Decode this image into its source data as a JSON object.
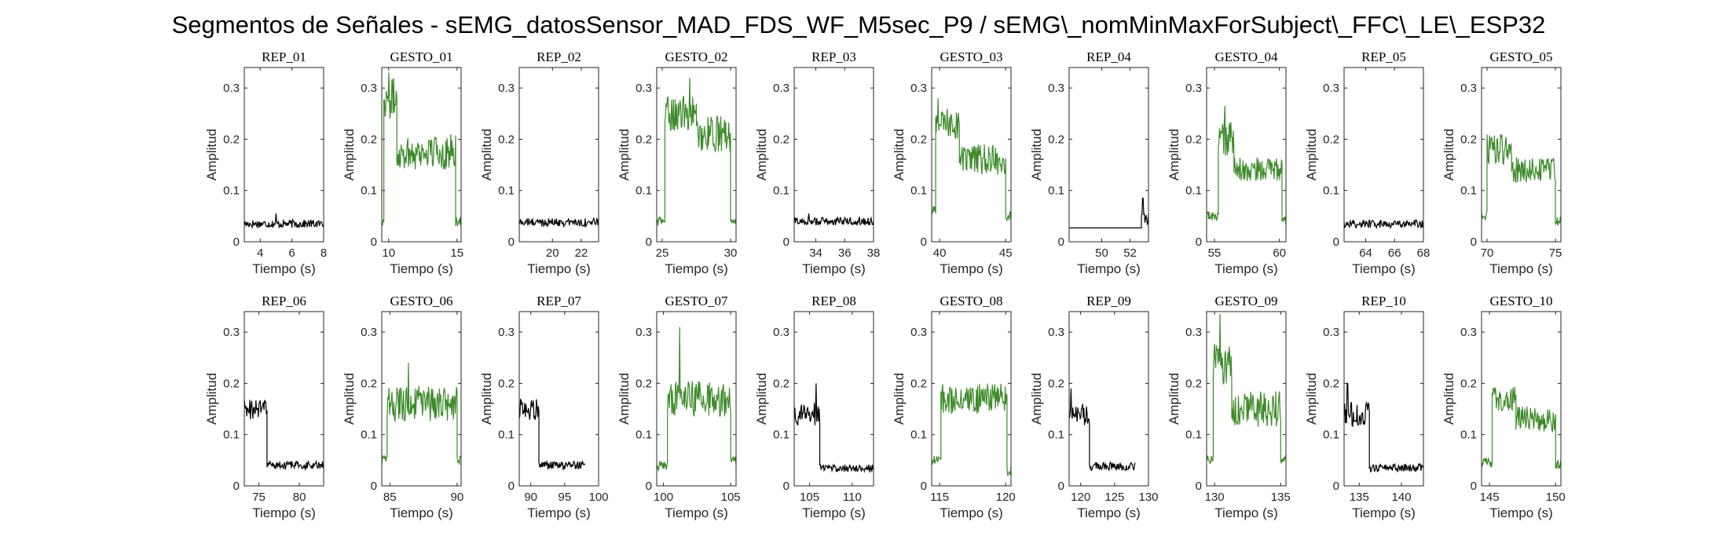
{
  "title": "Segmentos de Señales - sEMG_datosSensor_MAD_FDS_WF_M5sec_P9 / sEMG\\_nomMinMaxForSubject\\_FFC\\_LE\\_ESP32",
  "colors": {
    "rep": "#000000",
    "gesto": "#3d8a2a"
  },
  "chart_data": [
    {
      "type": "line",
      "title": "REP_01",
      "xlabel": "Tiempo (s)",
      "ylabel": "Amplitud",
      "xlim": [
        3,
        8
      ],
      "ylim": [
        0,
        0.34
      ],
      "xticks": [
        4,
        6,
        8
      ],
      "yticks": [
        0,
        0.1,
        0.2,
        0.3
      ],
      "color": "#000000",
      "segments": [
        {
          "x0": 3,
          "x1": 8,
          "level": 0.035,
          "noise": 0.008,
          "spikes": [
            {
              "x": 5.0,
              "y": 0.055
            }
          ]
        }
      ]
    },
    {
      "type": "line",
      "title": "GESTO_01",
      "xlabel": "Tiempo (s)",
      "ylabel": "Amplitud",
      "xlim": [
        9.5,
        15.3
      ],
      "ylim": [
        0,
        0.34
      ],
      "xticks": [
        10,
        15
      ],
      "yticks": [
        0,
        0.1,
        0.2,
        0.3
      ],
      "color": "#3d8a2a",
      "segments": [
        {
          "x0": 9.5,
          "x1": 9.65,
          "level": 0.04,
          "noise": 0.01
        },
        {
          "x0": 9.65,
          "x1": 10.6,
          "level": 0.28,
          "noise": 0.04,
          "spikes": [
            {
              "x": 10.0,
              "y": 0.33
            }
          ]
        },
        {
          "x0": 10.6,
          "x1": 14.9,
          "level": 0.175,
          "noise": 0.035
        },
        {
          "x0": 14.9,
          "x1": 15.3,
          "level": 0.04,
          "noise": 0.01
        }
      ]
    },
    {
      "type": "line",
      "title": "REP_02",
      "xlabel": "Tiempo (s)",
      "ylabel": "Amplitud",
      "xlim": [
        17.7,
        23.2
      ],
      "ylim": [
        0,
        0.34
      ],
      "xticks": [
        20,
        22
      ],
      "yticks": [
        0,
        0.1,
        0.2,
        0.3
      ],
      "color": "#000000",
      "segments": [
        {
          "x0": 17.7,
          "x1": 23.2,
          "level": 0.038,
          "noise": 0.008
        }
      ]
    },
    {
      "type": "line",
      "title": "GESTO_02",
      "xlabel": "Tiempo (s)",
      "ylabel": "Amplitud",
      "xlim": [
        24.6,
        30.4
      ],
      "ylim": [
        0,
        0.34
      ],
      "xticks": [
        25,
        30
      ],
      "yticks": [
        0,
        0.1,
        0.2,
        0.3
      ],
      "color": "#3d8a2a",
      "segments": [
        {
          "x0": 24.6,
          "x1": 25.2,
          "level": 0.04,
          "noise": 0.01
        },
        {
          "x0": 25.2,
          "x1": 27.5,
          "level": 0.25,
          "noise": 0.035,
          "spikes": [
            {
              "x": 27.0,
              "y": 0.32
            }
          ]
        },
        {
          "x0": 27.5,
          "x1": 30.0,
          "level": 0.21,
          "noise": 0.035
        },
        {
          "x0": 30.0,
          "x1": 30.4,
          "level": 0.035,
          "noise": 0.01
        }
      ]
    },
    {
      "type": "line",
      "title": "REP_03",
      "xlabel": "Tiempo (s)",
      "ylabel": "Amplitud",
      "xlim": [
        32.5,
        38
      ],
      "ylim": [
        0,
        0.34
      ],
      "xticks": [
        34,
        36,
        38
      ],
      "yticks": [
        0,
        0.1,
        0.2,
        0.3
      ],
      "color": "#000000",
      "segments": [
        {
          "x0": 32.5,
          "x1": 38,
          "level": 0.04,
          "noise": 0.008,
          "spikes": [
            {
              "x": 33.5,
              "y": 0.055
            }
          ]
        }
      ]
    },
    {
      "type": "line",
      "title": "GESTO_03",
      "xlabel": "Tiempo (s)",
      "ylabel": "Amplitud",
      "xlim": [
        39.4,
        45.4
      ],
      "ylim": [
        0,
        0.34
      ],
      "xticks": [
        40,
        45
      ],
      "yticks": [
        0,
        0.1,
        0.2,
        0.3
      ],
      "color": "#3d8a2a",
      "segments": [
        {
          "x0": 39.4,
          "x1": 39.7,
          "level": 0.06,
          "noise": 0.01
        },
        {
          "x0": 39.7,
          "x1": 41.5,
          "level": 0.23,
          "noise": 0.03,
          "spikes": [
            {
              "x": 39.9,
              "y": 0.28
            }
          ]
        },
        {
          "x0": 41.5,
          "x1": 45.0,
          "level": 0.16,
          "noise": 0.03
        },
        {
          "x0": 45.0,
          "x1": 45.4,
          "level": 0.05,
          "noise": 0.01
        }
      ]
    },
    {
      "type": "line",
      "title": "REP_04",
      "xlabel": "Tiempo (s)",
      "ylabel": "Amplitud",
      "xlim": [
        47.7,
        53.3
      ],
      "ylim": [
        0,
        0.34
      ],
      "xticks": [
        50,
        52
      ],
      "yticks": [
        0,
        0.1,
        0.2,
        0.3
      ],
      "color": "#000000",
      "segments": [
        {
          "x0": 47.7,
          "x1": 52.8,
          "level": 0.027,
          "noise": 0
        },
        {
          "x0": 52.8,
          "x1": 53.3,
          "level": 0.045,
          "noise": 0.012,
          "spikes": [
            {
              "x": 52.9,
              "y": 0.085
            }
          ]
        }
      ]
    },
    {
      "type": "line",
      "title": "GESTO_04",
      "xlabel": "Tiempo (s)",
      "ylabel": "Amplitud",
      "xlim": [
        54.4,
        60.5
      ],
      "ylim": [
        0,
        0.34
      ],
      "xticks": [
        55,
        60
      ],
      "yticks": [
        0,
        0.1,
        0.2,
        0.3
      ],
      "color": "#3d8a2a",
      "segments": [
        {
          "x0": 54.4,
          "x1": 55.3,
          "level": 0.05,
          "noise": 0.01
        },
        {
          "x0": 55.3,
          "x1": 56.5,
          "level": 0.2,
          "noise": 0.035,
          "spikes": [
            {
              "x": 55.8,
              "y": 0.265
            }
          ]
        },
        {
          "x0": 56.5,
          "x1": 60.2,
          "level": 0.14,
          "noise": 0.025
        },
        {
          "x0": 60.2,
          "x1": 60.5,
          "level": 0.04,
          "noise": 0.01
        }
      ]
    },
    {
      "type": "line",
      "title": "REP_05",
      "xlabel": "Tiempo (s)",
      "ylabel": "Amplitud",
      "xlim": [
        62.5,
        68
      ],
      "ylim": [
        0,
        0.34
      ],
      "xticks": [
        64,
        66,
        68
      ],
      "yticks": [
        0,
        0.1,
        0.2,
        0.3
      ],
      "color": "#000000",
      "segments": [
        {
          "x0": 62.5,
          "x1": 68,
          "level": 0.035,
          "noise": 0.008
        }
      ]
    },
    {
      "type": "line",
      "title": "GESTO_05",
      "xlabel": "Tiempo (s)",
      "ylabel": "Amplitud",
      "xlim": [
        69.6,
        75.4
      ],
      "ylim": [
        0,
        0.34
      ],
      "xticks": [
        70,
        75
      ],
      "yticks": [
        0,
        0.1,
        0.2,
        0.3
      ],
      "color": "#3d8a2a",
      "segments": [
        {
          "x0": 69.6,
          "x1": 70.0,
          "level": 0.05,
          "noise": 0.01
        },
        {
          "x0": 70.0,
          "x1": 71.8,
          "level": 0.18,
          "noise": 0.03
        },
        {
          "x0": 71.8,
          "x1": 75.0,
          "level": 0.14,
          "noise": 0.025
        },
        {
          "x0": 75.0,
          "x1": 75.4,
          "level": 0.04,
          "noise": 0.01
        }
      ]
    },
    {
      "type": "line",
      "title": "REP_06",
      "xlabel": "Tiempo (s)",
      "ylabel": "Amplitud",
      "xlim": [
        73.2,
        83
      ],
      "ylim": [
        0,
        0.34
      ],
      "xticks": [
        75,
        80
      ],
      "yticks": [
        0,
        0.1,
        0.2,
        0.3
      ],
      "color": "#000000",
      "segments": [
        {
          "x0": 73.2,
          "x1": 76.0,
          "level": 0.15,
          "noise": 0.022
        },
        {
          "x0": 76.0,
          "x1": 83,
          "level": 0.04,
          "noise": 0.008
        }
      ]
    },
    {
      "type": "line",
      "title": "GESTO_06",
      "xlabel": "Tiempo (s)",
      "ylabel": "Amplitud",
      "xlim": [
        84.4,
        90.3
      ],
      "ylim": [
        0,
        0.34
      ],
      "xticks": [
        85,
        90
      ],
      "yticks": [
        0,
        0.1,
        0.2,
        0.3
      ],
      "color": "#3d8a2a",
      "segments": [
        {
          "x0": 84.4,
          "x1": 84.8,
          "level": 0.05,
          "noise": 0.01
        },
        {
          "x0": 84.8,
          "x1": 90.0,
          "level": 0.16,
          "noise": 0.035,
          "spikes": [
            {
              "x": 86.4,
              "y": 0.24
            }
          ]
        },
        {
          "x0": 90.0,
          "x1": 90.3,
          "level": 0.05,
          "noise": 0.01
        }
      ]
    },
    {
      "type": "line",
      "title": "REP_07",
      "xlabel": "Tiempo (s)",
      "ylabel": "Amplitud",
      "xlim": [
        88.3,
        100
      ],
      "ylim": [
        0,
        0.34
      ],
      "xticks": [
        90,
        95,
        100
      ],
      "yticks": [
        0,
        0.1,
        0.2,
        0.3
      ],
      "color": "#000000",
      "segments": [
        {
          "x0": 88.3,
          "x1": 91.2,
          "level": 0.15,
          "noise": 0.022
        },
        {
          "x0": 91.2,
          "x1": 98,
          "level": 0.04,
          "noise": 0.008
        }
      ]
    },
    {
      "type": "line",
      "title": "GESTO_07",
      "xlabel": "Tiempo (s)",
      "ylabel": "Amplitud",
      "xlim": [
        99.5,
        105.4
      ],
      "ylim": [
        0,
        0.34
      ],
      "xticks": [
        100,
        105
      ],
      "yticks": [
        0,
        0.1,
        0.2,
        0.3
      ],
      "color": "#3d8a2a",
      "segments": [
        {
          "x0": 99.5,
          "x1": 100.3,
          "level": 0.04,
          "noise": 0.01
        },
        {
          "x0": 100.3,
          "x1": 105.0,
          "level": 0.17,
          "noise": 0.035,
          "spikes": [
            {
              "x": 101.2,
              "y": 0.31
            }
          ]
        },
        {
          "x0": 105.0,
          "x1": 105.4,
          "level": 0.05,
          "noise": 0.01
        }
      ]
    },
    {
      "type": "line",
      "title": "REP_08",
      "xlabel": "Tiempo (s)",
      "ylabel": "Amplitud",
      "xlim": [
        103.2,
        112.5
      ],
      "ylim": [
        0,
        0.34
      ],
      "xticks": [
        105,
        110
      ],
      "yticks": [
        0,
        0.1,
        0.2,
        0.3
      ],
      "color": "#000000",
      "segments": [
        {
          "x0": 103.2,
          "x1": 106.2,
          "level": 0.14,
          "noise": 0.022,
          "spikes": [
            {
              "x": 105.8,
              "y": 0.2
            }
          ]
        },
        {
          "x0": 106.2,
          "x1": 112.5,
          "level": 0.035,
          "noise": 0.008
        }
      ]
    },
    {
      "type": "line",
      "title": "GESTO_08",
      "xlabel": "Tiempo (s)",
      "ylabel": "Amplitud",
      "xlim": [
        114.4,
        120.4
      ],
      "ylim": [
        0,
        0.34
      ],
      "xticks": [
        115,
        120
      ],
      "yticks": [
        0,
        0.1,
        0.2,
        0.3
      ],
      "color": "#3d8a2a",
      "segments": [
        {
          "x0": 114.4,
          "x1": 115.1,
          "level": 0.05,
          "noise": 0.01
        },
        {
          "x0": 115.1,
          "x1": 120.1,
          "level": 0.17,
          "noise": 0.03
        },
        {
          "x0": 120.1,
          "x1": 120.4,
          "level": 0.03,
          "noise": 0.01
        }
      ]
    },
    {
      "type": "line",
      "title": "REP_09",
      "xlabel": "Tiempo (s)",
      "ylabel": "Amplitud",
      "xlim": [
        118.3,
        130
      ],
      "ylim": [
        0,
        0.34
      ],
      "xticks": [
        120,
        125,
        130
      ],
      "yticks": [
        0,
        0.1,
        0.2,
        0.3
      ],
      "color": "#000000",
      "segments": [
        {
          "x0": 118.3,
          "x1": 121.3,
          "level": 0.14,
          "noise": 0.022,
          "spikes": [
            {
              "x": 118.6,
              "y": 0.19
            }
          ]
        },
        {
          "x0": 121.3,
          "x1": 128,
          "level": 0.038,
          "noise": 0.008
        }
      ]
    },
    {
      "type": "line",
      "title": "GESTO_09",
      "xlabel": "Tiempo (s)",
      "ylabel": "Amplitud",
      "xlim": [
        129.4,
        135.4
      ],
      "ylim": [
        0,
        0.34
      ],
      "xticks": [
        130,
        135
      ],
      "yticks": [
        0,
        0.1,
        0.2,
        0.3
      ],
      "color": "#3d8a2a",
      "segments": [
        {
          "x0": 129.4,
          "x1": 129.9,
          "level": 0.05,
          "noise": 0.01
        },
        {
          "x0": 129.9,
          "x1": 131.3,
          "level": 0.24,
          "noise": 0.045,
          "spikes": [
            {
              "x": 130.4,
              "y": 0.335
            }
          ]
        },
        {
          "x0": 131.3,
          "x1": 135.0,
          "level": 0.15,
          "noise": 0.035
        },
        {
          "x0": 135.0,
          "x1": 135.4,
          "level": 0.05,
          "noise": 0.01
        }
      ]
    },
    {
      "type": "line",
      "title": "REP_10",
      "xlabel": "Tiempo (s)",
      "ylabel": "Amplitud",
      "xlim": [
        133.2,
        142.6
      ],
      "ylim": [
        0,
        0.34
      ],
      "xticks": [
        135,
        140
      ],
      "yticks": [
        0,
        0.1,
        0.2,
        0.3
      ],
      "color": "#000000",
      "segments": [
        {
          "x0": 133.2,
          "x1": 136.2,
          "level": 0.14,
          "noise": 0.025,
          "spikes": [
            {
              "x": 133.6,
              "y": 0.2
            }
          ]
        },
        {
          "x0": 136.2,
          "x1": 142.6,
          "level": 0.035,
          "noise": 0.008
        }
      ]
    },
    {
      "type": "line",
      "title": "GESTO_10",
      "xlabel": "Tiempo (s)",
      "ylabel": "Amplitud",
      "xlim": [
        144.4,
        150.4
      ],
      "ylim": [
        0,
        0.34
      ],
      "xticks": [
        145,
        150
      ],
      "yticks": [
        0,
        0.1,
        0.2,
        0.3
      ],
      "color": "#3d8a2a",
      "segments": [
        {
          "x0": 144.4,
          "x1": 145.2,
          "level": 0.045,
          "noise": 0.01
        },
        {
          "x0": 145.2,
          "x1": 147.0,
          "level": 0.17,
          "noise": 0.025
        },
        {
          "x0": 147.0,
          "x1": 150.0,
          "level": 0.13,
          "noise": 0.025
        },
        {
          "x0": 150.0,
          "x1": 150.4,
          "level": 0.04,
          "noise": 0.01
        }
      ]
    }
  ]
}
